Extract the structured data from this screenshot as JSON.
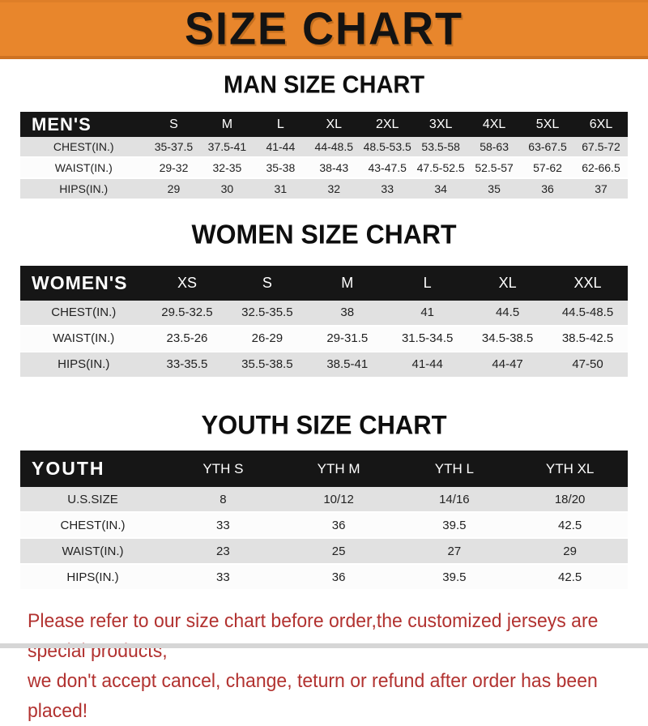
{
  "banner": {
    "title": "SIZE CHART"
  },
  "colors": {
    "banner_orange": "#E8862C",
    "table_header_black": "#161616",
    "shaded_row_gray": "#E1E1E1",
    "disclaimer_red": "#B23230"
  },
  "sections": [
    {
      "heading": "MAN SIZE CHART",
      "table": {
        "header_label": "MEN'S",
        "columns": [
          "S",
          "M",
          "L",
          "XL",
          "2XL",
          "3XL",
          "4XL",
          "5XL",
          "6XL"
        ],
        "rows": [
          {
            "label": "CHEST(IN.)",
            "values": [
              "35-37.5",
              "37.5-41",
              "41-44",
              "44-48.5",
              "48.5-53.5",
              "53.5-58",
              "58-63",
              "63-67.5",
              "67.5-72"
            ]
          },
          {
            "label": "WAIST(IN.)",
            "values": [
              "29-32",
              "32-35",
              "35-38",
              "38-43",
              "43-47.5",
              "47.5-52.5",
              "52.5-57",
              "57-62",
              "62-66.5"
            ]
          },
          {
            "label": "HIPS(IN.)",
            "values": [
              "29",
              "30",
              "31",
              "32",
              "33",
              "34",
              "35",
              "36",
              "37"
            ]
          }
        ]
      }
    },
    {
      "heading": "WOMEN SIZE CHART",
      "table": {
        "header_label": "WOMEN'S",
        "columns": [
          "XS",
          "S",
          "M",
          "L",
          "XL",
          "XXL"
        ],
        "rows": [
          {
            "label": "CHEST(IN.)",
            "values": [
              "29.5-32.5",
              "32.5-35.5",
              "38",
              "41",
              "44.5",
              "44.5-48.5"
            ]
          },
          {
            "label": "WAIST(IN.)",
            "values": [
              "23.5-26",
              "26-29",
              "29-31.5",
              "31.5-34.5",
              "34.5-38.5",
              "38.5-42.5"
            ]
          },
          {
            "label": "HIPS(IN.)",
            "values": [
              "33-35.5",
              "35.5-38.5",
              "38.5-41",
              "41-44",
              "44-47",
              "47-50"
            ]
          }
        ]
      }
    },
    {
      "heading": "YOUTH SIZE CHART",
      "table": {
        "header_label": "YOUTH",
        "columns": [
          "YTH S",
          "YTH M",
          "YTH L",
          "YTH XL"
        ],
        "rows": [
          {
            "label": "U.S.SIZE",
            "values": [
              "8",
              "10/12",
              "14/16",
              "18/20"
            ]
          },
          {
            "label": "CHEST(IN.)",
            "values": [
              "33",
              "36",
              "39.5",
              "42.5"
            ]
          },
          {
            "label": "WAIST(IN.)",
            "values": [
              "23",
              "25",
              "27",
              "29"
            ]
          },
          {
            "label": "HIPS(IN.)",
            "values": [
              "33",
              "36",
              "39.5",
              "42.5"
            ]
          }
        ]
      }
    }
  ],
  "footer": {
    "line1": "Please refer to our size chart before order,the customized jerseys are special products,",
    "line2": "we don't accept cancel, change, teturn or refund after order has been placed!"
  }
}
